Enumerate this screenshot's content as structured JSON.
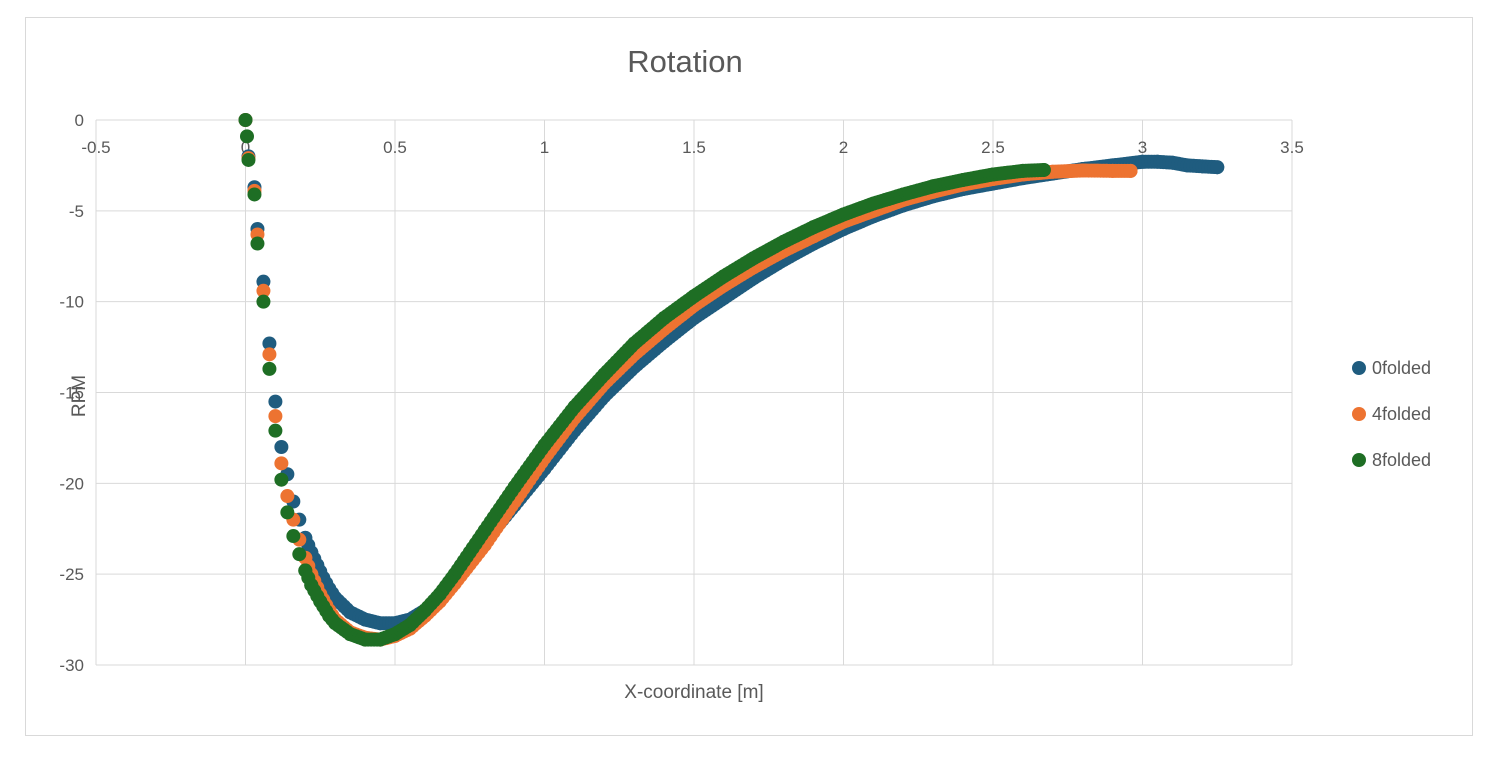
{
  "chart_data": {
    "type": "scatter",
    "title": "Rotation",
    "xlabel": "X-coordinate [m]",
    "ylabel": "RPM",
    "xlim": [
      -0.5,
      3.5
    ],
    "ylim": [
      -30,
      0
    ],
    "xticks": [
      -0.5,
      0,
      0.5,
      1,
      1.5,
      2,
      2.5,
      3,
      3.5
    ],
    "xtick_labels": [
      "-0.5",
      "0",
      "0.5",
      "1",
      "1.5",
      "2",
      "2.5",
      "3",
      "3.5"
    ],
    "yticks": [
      0,
      -5,
      -10,
      -15,
      -20,
      -25,
      -30
    ],
    "ytick_labels": [
      "0",
      "-5",
      "-10",
      "-15",
      "-20",
      "-25",
      "-30"
    ],
    "grid": true,
    "legend_position": "right",
    "series": [
      {
        "name": "0folded",
        "color": "#1f5c7f",
        "x_max": 3.25,
        "points": [
          [
            0,
            0
          ],
          [
            0.01,
            -2
          ],
          [
            0.03,
            -3.7
          ],
          [
            0.04,
            -6
          ],
          [
            0.06,
            -8.9
          ],
          [
            0.08,
            -12.3
          ],
          [
            0.1,
            -15.5
          ],
          [
            0.12,
            -18
          ],
          [
            0.14,
            -19.5
          ],
          [
            0.16,
            -21
          ],
          [
            0.18,
            -22
          ],
          [
            0.2,
            -23
          ],
          [
            0.22,
            -23.8
          ],
          [
            0.24,
            -24.5
          ],
          [
            0.26,
            -25.2
          ],
          [
            0.28,
            -25.8
          ],
          [
            0.3,
            -26.3
          ],
          [
            0.35,
            -27.1
          ],
          [
            0.4,
            -27.5
          ],
          [
            0.45,
            -27.7
          ],
          [
            0.5,
            -27.7
          ],
          [
            0.55,
            -27.5
          ],
          [
            0.6,
            -27
          ],
          [
            0.65,
            -26.2
          ],
          [
            0.7,
            -25.3
          ],
          [
            0.8,
            -23.2
          ],
          [
            0.9,
            -21.2
          ],
          [
            1.0,
            -19.2
          ],
          [
            1.1,
            -17.1
          ],
          [
            1.2,
            -15.2
          ],
          [
            1.3,
            -13.6
          ],
          [
            1.4,
            -12.2
          ],
          [
            1.5,
            -10.9
          ],
          [
            1.6,
            -9.8
          ],
          [
            1.7,
            -8.7
          ],
          [
            1.8,
            -7.7
          ],
          [
            1.9,
            -6.8
          ],
          [
            2.0,
            -6.0
          ],
          [
            2.1,
            -5.3
          ],
          [
            2.2,
            -4.7
          ],
          [
            2.3,
            -4.2
          ],
          [
            2.4,
            -3.8
          ],
          [
            2.5,
            -3.5
          ],
          [
            2.6,
            -3.2
          ],
          [
            2.7,
            -2.95
          ],
          [
            2.8,
            -2.7
          ],
          [
            2.9,
            -2.5
          ],
          [
            3.0,
            -2.3
          ],
          [
            3.05,
            -2.3
          ],
          [
            3.1,
            -2.35
          ],
          [
            3.15,
            -2.5
          ],
          [
            3.2,
            -2.55
          ],
          [
            3.25,
            -2.6
          ]
        ]
      },
      {
        "name": "4folded",
        "color": "#ed7331",
        "x_max": 2.96,
        "points": [
          [
            0,
            0
          ],
          [
            0.01,
            -2.1
          ],
          [
            0.03,
            -3.9
          ],
          [
            0.04,
            -6.3
          ],
          [
            0.06,
            -9.4
          ],
          [
            0.08,
            -12.9
          ],
          [
            0.1,
            -16.3
          ],
          [
            0.12,
            -18.9
          ],
          [
            0.14,
            -20.7
          ],
          [
            0.16,
            -22
          ],
          [
            0.18,
            -23.1
          ],
          [
            0.2,
            -24.1
          ],
          [
            0.22,
            -25
          ],
          [
            0.25,
            -26.1
          ],
          [
            0.28,
            -27
          ],
          [
            0.3,
            -27.5
          ],
          [
            0.35,
            -28.2
          ],
          [
            0.4,
            -28.5
          ],
          [
            0.45,
            -28.6
          ],
          [
            0.5,
            -28.4
          ],
          [
            0.55,
            -28
          ],
          [
            0.6,
            -27.3
          ],
          [
            0.65,
            -26.5
          ],
          [
            0.7,
            -25.5
          ],
          [
            0.8,
            -23.4
          ],
          [
            0.9,
            -21
          ],
          [
            1.0,
            -18.6
          ],
          [
            1.1,
            -16.4
          ],
          [
            1.2,
            -14.5
          ],
          [
            1.3,
            -12.9
          ],
          [
            1.4,
            -11.5
          ],
          [
            1.5,
            -10.2
          ],
          [
            1.6,
            -9.1
          ],
          [
            1.7,
            -8.1
          ],
          [
            1.8,
            -7.2
          ],
          [
            1.9,
            -6.4
          ],
          [
            2.0,
            -5.6
          ],
          [
            2.1,
            -5.0
          ],
          [
            2.2,
            -4.4
          ],
          [
            2.3,
            -3.95
          ],
          [
            2.4,
            -3.55
          ],
          [
            2.5,
            -3.25
          ],
          [
            2.6,
            -3.0
          ],
          [
            2.7,
            -2.85
          ],
          [
            2.8,
            -2.78
          ],
          [
            2.9,
            -2.8
          ],
          [
            2.96,
            -2.8
          ]
        ]
      },
      {
        "name": "8folded",
        "color": "#1e6e24",
        "x_max": 2.67,
        "points": [
          [
            0,
            0
          ],
          [
            0.005,
            -0.9
          ],
          [
            0.01,
            -2.2
          ],
          [
            0.03,
            -4.1
          ],
          [
            0.04,
            -6.8
          ],
          [
            0.06,
            -10
          ],
          [
            0.08,
            -13.7
          ],
          [
            0.1,
            -17.1
          ],
          [
            0.12,
            -19.8
          ],
          [
            0.14,
            -21.6
          ],
          [
            0.16,
            -22.9
          ],
          [
            0.18,
            -23.9
          ],
          [
            0.2,
            -24.8
          ],
          [
            0.22,
            -25.6
          ],
          [
            0.25,
            -26.5
          ],
          [
            0.28,
            -27.3
          ],
          [
            0.3,
            -27.7
          ],
          [
            0.35,
            -28.3
          ],
          [
            0.4,
            -28.6
          ],
          [
            0.45,
            -28.6
          ],
          [
            0.5,
            -28.3
          ],
          [
            0.55,
            -27.8
          ],
          [
            0.6,
            -27.0
          ],
          [
            0.65,
            -26.1
          ],
          [
            0.7,
            -25.0
          ],
          [
            0.8,
            -22.6
          ],
          [
            0.9,
            -20.2
          ],
          [
            1.0,
            -17.9
          ],
          [
            1.1,
            -15.8
          ],
          [
            1.2,
            -14.0
          ],
          [
            1.3,
            -12.3
          ],
          [
            1.4,
            -10.9
          ],
          [
            1.5,
            -9.7
          ],
          [
            1.6,
            -8.6
          ],
          [
            1.7,
            -7.6
          ],
          [
            1.8,
            -6.7
          ],
          [
            1.9,
            -5.9
          ],
          [
            2.0,
            -5.2
          ],
          [
            2.1,
            -4.6
          ],
          [
            2.2,
            -4.1
          ],
          [
            2.3,
            -3.65
          ],
          [
            2.4,
            -3.3
          ],
          [
            2.5,
            -3.0
          ],
          [
            2.6,
            -2.8
          ],
          [
            2.67,
            -2.75
          ]
        ]
      }
    ]
  }
}
